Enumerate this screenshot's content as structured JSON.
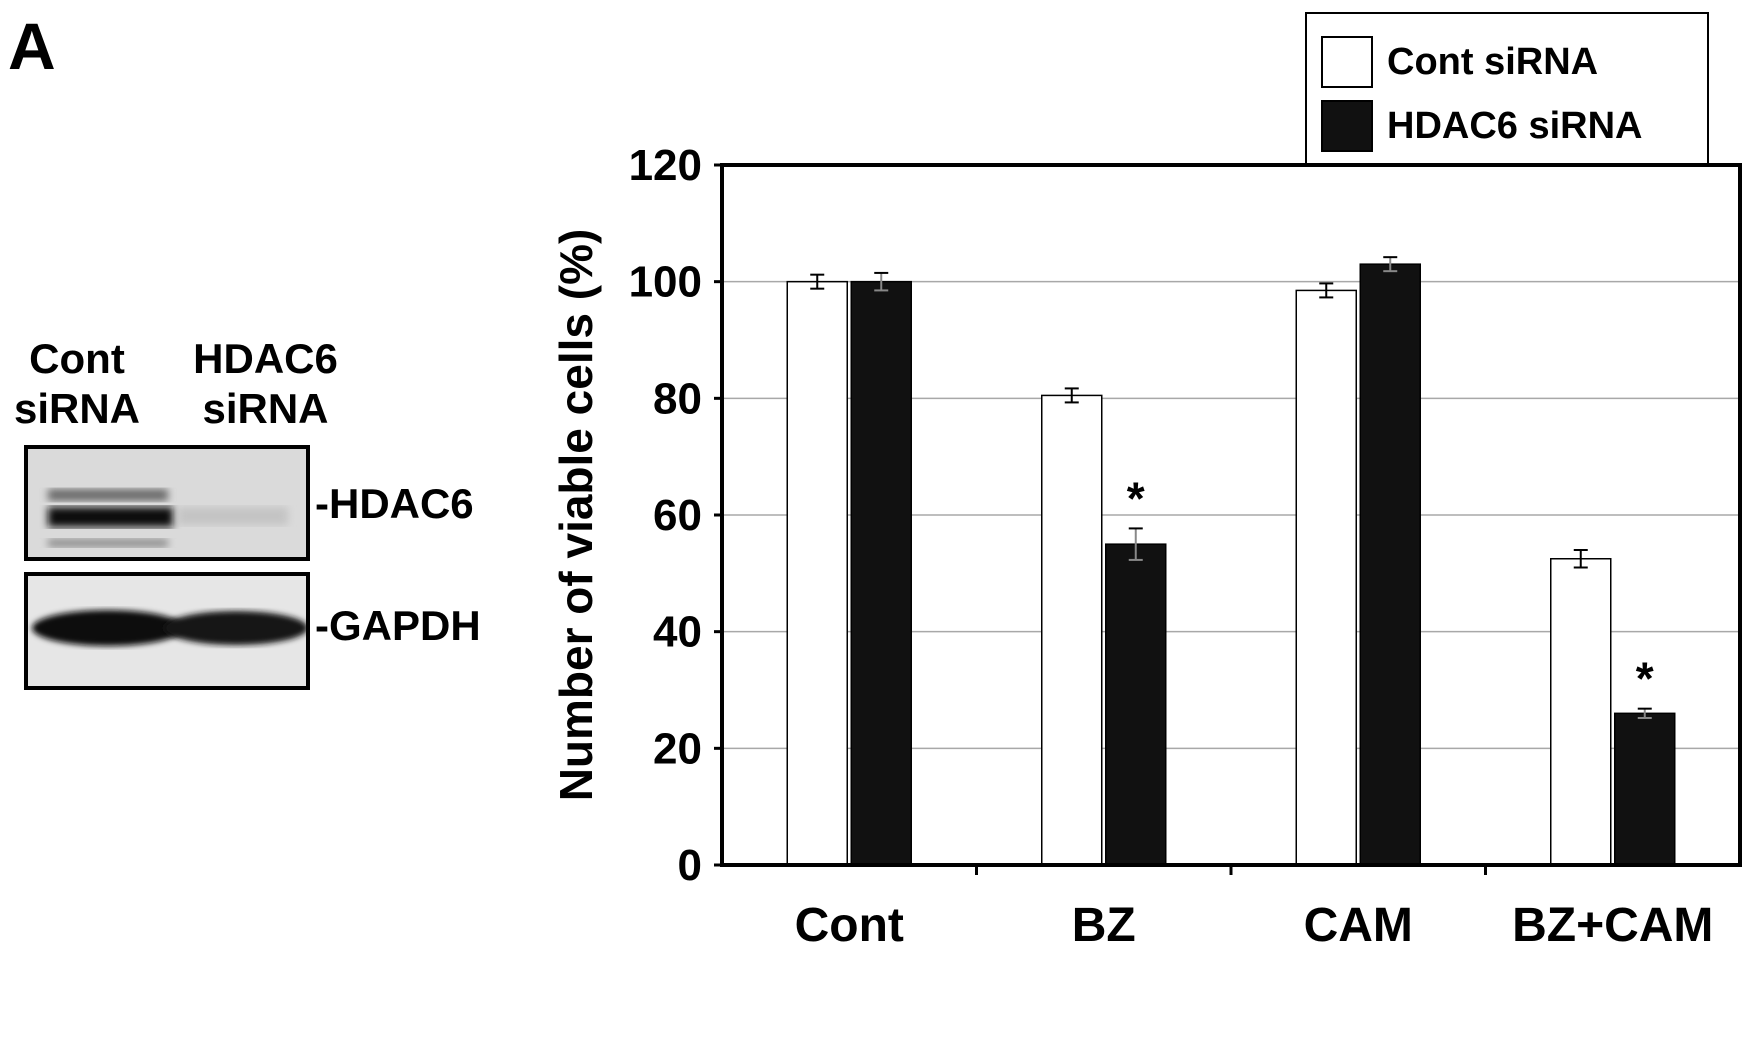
{
  "panel_letter": "A",
  "blot": {
    "lane_labels": [
      {
        "line1": "Cont",
        "line2": "siRNA"
      },
      {
        "line1": "HDAC6",
        "line2": "siRNA"
      }
    ],
    "bands": [
      {
        "label": "-HDAC6"
      },
      {
        "label": "-GAPDH"
      }
    ]
  },
  "legend": {
    "items": [
      {
        "label": "Cont siRNA",
        "color": "#ffffff"
      },
      {
        "label": "HDAC6 siRNA",
        "color": "#111111"
      }
    ]
  },
  "chart_data": {
    "type": "bar",
    "title": "",
    "xlabel": "",
    "ylabel": "Number of viable cells (%)",
    "categories": [
      "Cont",
      "BZ",
      "CAM",
      "BZ+CAM"
    ],
    "ylim": [
      0,
      120
    ],
    "yticks": [
      0,
      20,
      40,
      60,
      80,
      100,
      120
    ],
    "grid": true,
    "legend_position": "top-right",
    "series": [
      {
        "name": "Cont siRNA",
        "color": "#ffffff",
        "values": [
          100,
          80.5,
          98.5,
          52.5
        ],
        "errors": [
          1.2,
          1.2,
          1.2,
          1.5
        ]
      },
      {
        "name": "HDAC6 siRNA",
        "color": "#111111",
        "values": [
          100,
          55,
          103,
          26
        ],
        "errors": [
          1.5,
          2.7,
          1.2,
          0.8
        ]
      }
    ],
    "annotations": [
      {
        "category": "BZ",
        "series": "HDAC6 siRNA",
        "text": "*"
      },
      {
        "category": "BZ+CAM",
        "series": "HDAC6 siRNA",
        "text": "*"
      }
    ]
  }
}
